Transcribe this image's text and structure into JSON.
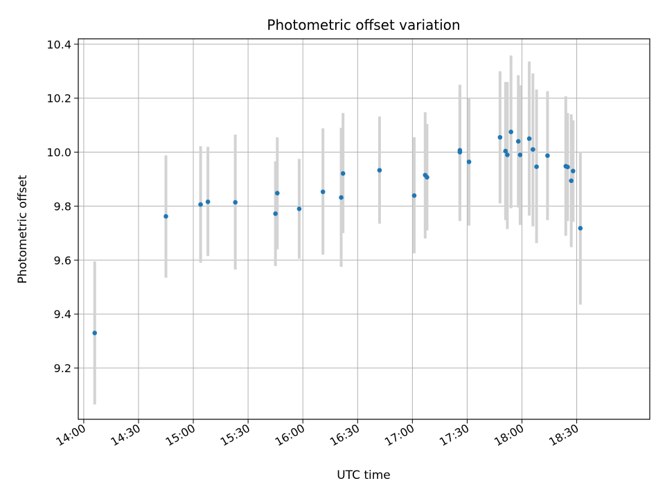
{
  "chart_data": {
    "type": "scatter",
    "title": "Photometric offset variation",
    "xlabel": "UTC time",
    "ylabel": "Photometric offset",
    "grid": true,
    "xlim": [
      "13:57",
      "19:10"
    ],
    "ylim": [
      9.01,
      10.42
    ],
    "x_ticks": [
      "14:00",
      "14:30",
      "15:00",
      "15:30",
      "16:00",
      "16:30",
      "17:00",
      "17:30",
      "18:00",
      "18:30"
    ],
    "y_ticks": [
      9.2,
      9.4,
      9.6,
      9.8,
      10.0,
      10.2,
      10.4
    ],
    "colors": {
      "points": "#1f77b4",
      "errorbars": "#d3d3d3",
      "grid": "#b0b0b0"
    },
    "points": [
      {
        "t": "14:06",
        "y": 9.33,
        "lo": 9.065,
        "hi": 9.595
      },
      {
        "t": "14:45",
        "y": 9.762,
        "lo": 9.535,
        "hi": 9.988
      },
      {
        "t": "15:04",
        "y": 9.806,
        "lo": 9.59,
        "hi": 10.022
      },
      {
        "t": "15:08",
        "y": 9.816,
        "lo": 9.615,
        "hi": 10.02
      },
      {
        "t": "15:23",
        "y": 9.814,
        "lo": 9.565,
        "hi": 10.065
      },
      {
        "t": "15:45",
        "y": 9.772,
        "lo": 9.578,
        "hi": 9.966
      },
      {
        "t": "15:46",
        "y": 9.848,
        "lo": 9.64,
        "hi": 10.055
      },
      {
        "t": "15:58",
        "y": 9.79,
        "lo": 9.605,
        "hi": 9.975
      },
      {
        "t": "16:11",
        "y": 9.853,
        "lo": 9.62,
        "hi": 10.088
      },
      {
        "t": "16:21",
        "y": 9.832,
        "lo": 9.575,
        "hi": 10.09
      },
      {
        "t": "16:22",
        "y": 9.921,
        "lo": 9.7,
        "hi": 10.145
      },
      {
        "t": "16:42",
        "y": 9.933,
        "lo": 9.735,
        "hi": 10.132
      },
      {
        "t": "17:01",
        "y": 9.839,
        "lo": 9.625,
        "hi": 10.055
      },
      {
        "t": "17:07",
        "y": 9.915,
        "lo": 9.68,
        "hi": 10.148
      },
      {
        "t": "17:08",
        "y": 9.907,
        "lo": 9.71,
        "hi": 10.104
      },
      {
        "t": "17:26",
        "y": 10.0,
        "lo": 9.745,
        "hi": 10.25
      },
      {
        "t": "17:26",
        "y": 10.007,
        "lo": 9.79,
        "hi": 10.224
      },
      {
        "t": "17:31",
        "y": 9.964,
        "lo": 9.728,
        "hi": 10.2
      },
      {
        "t": "17:48",
        "y": 10.055,
        "lo": 9.81,
        "hi": 10.3
      },
      {
        "t": "17:51",
        "y": 10.004,
        "lo": 9.748,
        "hi": 10.26
      },
      {
        "t": "17:52",
        "y": 9.99,
        "lo": 9.715,
        "hi": 10.26
      },
      {
        "t": "17:54",
        "y": 10.075,
        "lo": 9.792,
        "hi": 10.358
      },
      {
        "t": "17:58",
        "y": 10.04,
        "lo": 9.795,
        "hi": 10.285
      },
      {
        "t": "17:59",
        "y": 9.99,
        "lo": 9.73,
        "hi": 10.248
      },
      {
        "t": "18:04",
        "y": 10.05,
        "lo": 9.765,
        "hi": 10.336
      },
      {
        "t": "18:06",
        "y": 10.01,
        "lo": 9.725,
        "hi": 10.292
      },
      {
        "t": "18:08",
        "y": 9.946,
        "lo": 9.663,
        "hi": 10.232
      },
      {
        "t": "18:14",
        "y": 9.987,
        "lo": 9.748,
        "hi": 10.226
      },
      {
        "t": "18:24",
        "y": 9.948,
        "lo": 9.69,
        "hi": 10.207
      },
      {
        "t": "18:25",
        "y": 9.945,
        "lo": 9.745,
        "hi": 10.145
      },
      {
        "t": "18:27",
        "y": 9.894,
        "lo": 9.648,
        "hi": 10.14
      },
      {
        "t": "18:28",
        "y": 9.93,
        "lo": 9.742,
        "hi": 10.118
      },
      {
        "t": "18:32",
        "y": 9.718,
        "lo": 9.435,
        "hi": 10.002
      }
    ]
  }
}
